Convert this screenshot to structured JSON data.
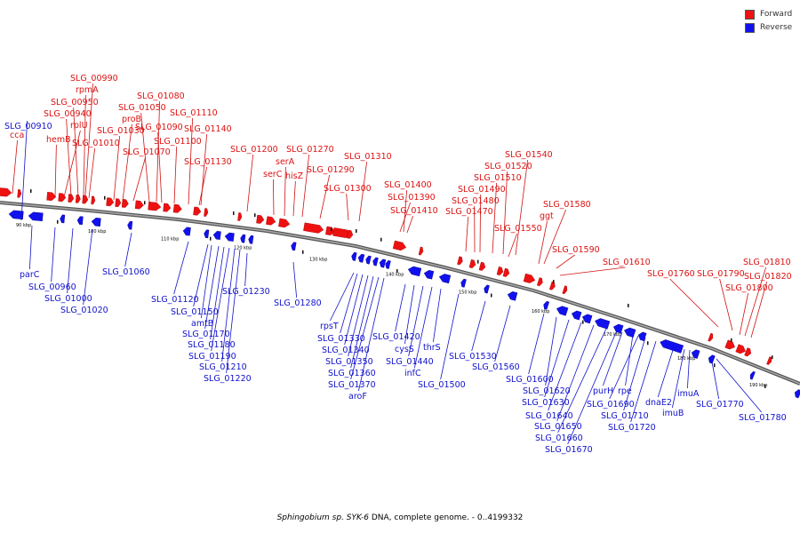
{
  "legend": {
    "forward_label": "Forward",
    "forward_color": "#ee1111",
    "reverse_label": "Reverse",
    "reverse_color": "#1111ee"
  },
  "caption": {
    "organism": "Sphingobium sp. SYK-6",
    "rest": " DNA, complete genome. - 0..4199332"
  },
  "colors": {
    "forward": "#ee1111",
    "reverse": "#1111ee",
    "backbone": "#888888",
    "forward_label": "#d11111",
    "reverse_label": "#1111cc"
  },
  "scale_ticks": [
    "90 kbp",
    "100 kbp",
    "110 kbp",
    "120 kbp",
    "130 kbp",
    "140 kbp",
    "150 kbp",
    "160 kbp",
    "170 kbp",
    "180 kbp",
    "190 kbp"
  ],
  "forward_genes": [
    "SLG_00990",
    "rpmA",
    "SLG_00950",
    "SLG_00940",
    "rplU",
    "hemB",
    "SLG_01010",
    "cca",
    "SLG_01080",
    "SLG_01050",
    "proB",
    "SLG_01030",
    "SLG_01090",
    "SLG_01110",
    "SLG_01140",
    "SLG_01100",
    "SLG_01070",
    "SLG_01130",
    "SLG_01200",
    "SLG_01270",
    "serA",
    "serC",
    "hisZ",
    "SLG_01290",
    "SLG_01310",
    "SLG_01300",
    "SLG_01400",
    "SLG_01390",
    "SLG_01410",
    "SLG_01540",
    "SLG_01520",
    "SLG_01510",
    "SLG_01490",
    "SLG_01480",
    "SLG_01470",
    "SLG_01550",
    "SLG_01580",
    "ggt",
    "SLG_01590",
    "SLG_01610",
    "SLG_01760",
    "SLG_01790",
    "SLG_01810",
    "SLG_01820",
    "SLG_01800"
  ],
  "reverse_genes": [
    "SLG_00910",
    "parC",
    "SLG_00960",
    "SLG_01000",
    "SLG_01020",
    "SLG_01060",
    "SLG_01120",
    "SLG_01150",
    "amtB",
    "SLG_01170",
    "SLG_01180",
    "SLG_01190",
    "SLG_01210",
    "SLG_01220",
    "SLG_01230",
    "SLG_01280",
    "rpsT",
    "SLG_01330",
    "SLG_01340",
    "SLG_01350",
    "SLG_01360",
    "SLG_01370",
    "aroF",
    "SLG_01420",
    "cysS",
    "SLG_01440",
    "infC",
    "thrS",
    "SLG_01500",
    "SLG_01530",
    "SLG_01560",
    "SLG_01600",
    "SLG_01620",
    "SLG_01630",
    "SLG_01640",
    "SLG_01650",
    "SLG_01660",
    "SLG_01670",
    "purH",
    "rpe",
    "SLG_01690",
    "SLG_01710",
    "SLG_01720",
    "dnaE2",
    "imuA",
    "imuB",
    "SLG_01770",
    "SLG_01780"
  ]
}
